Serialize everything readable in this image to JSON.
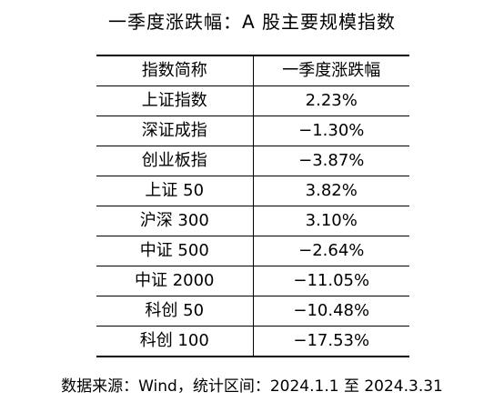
{
  "title": "一季度涨跌幅：A 股主要规模指数",
  "table": {
    "headers": [
      "指数简称",
      "一季度涨跌幅"
    ],
    "rows": [
      {
        "name": "上证指数",
        "change": "2.23%"
      },
      {
        "name": "深证成指",
        "change": "−1.30%"
      },
      {
        "name": "创业板指",
        "change": "−3.87%"
      },
      {
        "name": "上证 50",
        "change": "3.82%"
      },
      {
        "name": "沪深 300",
        "change": "3.10%"
      },
      {
        "name": "中证 500",
        "change": "−2.64%"
      },
      {
        "name": "中证 2000",
        "change": "−11.05%"
      },
      {
        "name": "科创 50",
        "change": "−10.48%"
      },
      {
        "name": "科创 100",
        "change": "−17.53%"
      }
    ]
  },
  "source": "数据来源：Wind，统计区间：2024.1.1 至 2024.3.31"
}
